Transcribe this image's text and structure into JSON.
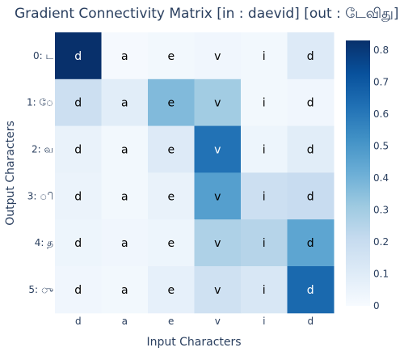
{
  "chart_data": {
    "type": "heatmap",
    "title": "Gradient Connectivity Matrix [in : daevid] [out : டேவிது]",
    "xlabel": "Input Characters",
    "ylabel": "Output Characters",
    "x_categories": [
      "d",
      "a",
      "e",
      "v",
      "i",
      "d"
    ],
    "y_categories": [
      "0: ட",
      "1: ே",
      "2: வ",
      "3: ி",
      "4: த",
      "5: ு"
    ],
    "cell_labels": [
      "d",
      "a",
      "e",
      "v",
      "i",
      "d"
    ],
    "values": [
      [
        0.83,
        0.01,
        0.02,
        0.03,
        0.02,
        0.11
      ],
      [
        0.18,
        0.09,
        0.37,
        0.3,
        0.02,
        0.03
      ],
      [
        0.06,
        0.02,
        0.11,
        0.62,
        0.04,
        0.09
      ],
      [
        0.05,
        0.02,
        0.06,
        0.47,
        0.18,
        0.2
      ],
      [
        0.04,
        0.03,
        0.04,
        0.27,
        0.25,
        0.45
      ],
      [
        0.03,
        0.02,
        0.07,
        0.17,
        0.13,
        0.65
      ]
    ],
    "colorscale": "Blues",
    "zmin": 0,
    "zmax": 0.83,
    "colorbar_ticks": [
      0,
      0.1,
      0.2,
      0.3,
      0.4,
      0.5,
      0.6,
      0.7,
      0.8
    ],
    "colorbar_tick_labels": [
      "0",
      "0.1",
      "0.2",
      "0.3",
      "0.4",
      "0.5",
      "0.6",
      "0.7",
      "0.8"
    ]
  }
}
